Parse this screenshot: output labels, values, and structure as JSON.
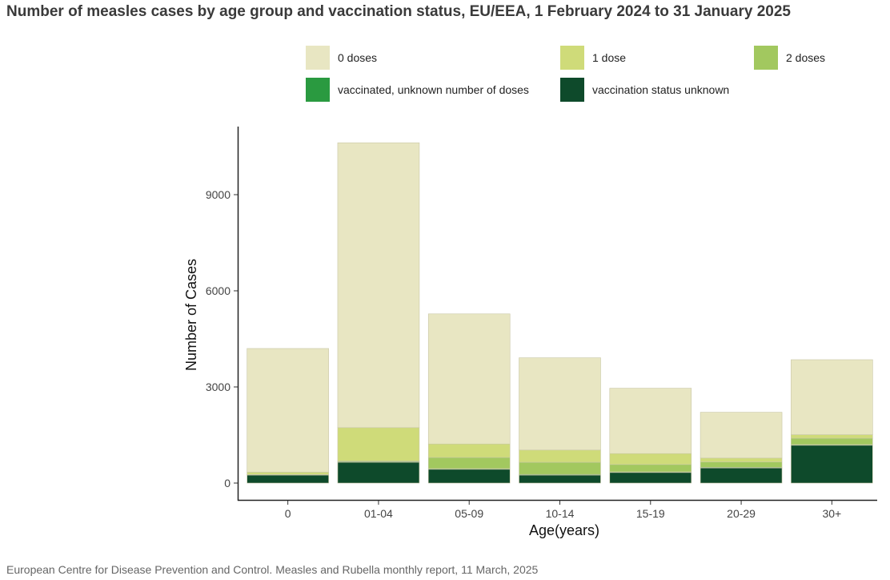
{
  "title": "Number of measles cases by age group and vaccination status, EU/EEA, 1 February 2024 to 31 January 2025",
  "source": "European Centre for Disease Prevention and Control. Measles and Rubella monthly report, 11 March, 2025",
  "colors": {
    "0 doses": "#e8e6c2",
    "1 dose": "#cfdb79",
    "2 doses": "#a2c85f",
    "vaccinated, unknown number of doses": "#2a9a40",
    "vaccination status unknown": "#0e4a2b"
  },
  "chart_data": {
    "type": "bar",
    "stacked": true,
    "title": "Number of measles cases by age group and vaccination status, EU/EEA, 1 February 2024 to 31 January 2025",
    "xlabel": "Age(years)",
    "ylabel": "Number of Cases",
    "categories": [
      "0",
      "01-04",
      "05-09",
      "10-14",
      "15-19",
      "20-29",
      "30+"
    ],
    "yticks": [
      0,
      3000,
      6000,
      9000
    ],
    "ylim": [
      0,
      11100
    ],
    "series": [
      {
        "name": "vaccination status unknown",
        "values": [
          250,
          650,
          430,
          250,
          330,
          470,
          1180
        ]
      },
      {
        "name": "vaccinated, unknown number of doses",
        "values": [
          10,
          20,
          20,
          20,
          20,
          20,
          20
        ]
      },
      {
        "name": "2 doses",
        "values": [
          10,
          20,
          350,
          380,
          230,
          170,
          200
        ]
      },
      {
        "name": "1 dose",
        "values": [
          70,
          1040,
          420,
          380,
          340,
          120,
          110
        ]
      },
      {
        "name": "0 doses",
        "values": [
          3860,
          8890,
          4060,
          2880,
          2040,
          1430,
          2340
        ]
      }
    ],
    "legend_order": [
      "0 doses",
      "1 dose",
      "2 doses",
      "vaccinated, unknown number of doses",
      "vaccination status unknown"
    ],
    "grid": false,
    "legend": "top"
  }
}
